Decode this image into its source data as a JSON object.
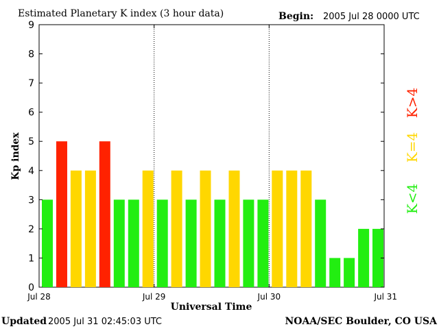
{
  "header": {
    "title": "Estimated Planetary K index (3 hour data)",
    "begin_label": "Begin:",
    "begin_value": "2005 Jul 28 0000 UTC"
  },
  "footer": {
    "updated_label": "Updated",
    "updated_value": "2005 Jul 31 02:45:03 UTC",
    "source": "NOAA/SEC Boulder, CO USA"
  },
  "legend": {
    "items": [
      {
        "label": "K>4",
        "color": "#ff2200"
      },
      {
        "label": "K=4",
        "color": "#ffd700"
      },
      {
        "label": "K<4",
        "color": "#22ee11"
      }
    ]
  },
  "chart_data": {
    "type": "bar",
    "xlabel": "Universal Time",
    "ylabel": "Kp index",
    "ylim": [
      0,
      9
    ],
    "y_ticks": [
      "0",
      "1",
      "2",
      "3",
      "4",
      "5",
      "6",
      "7",
      "8",
      "9"
    ],
    "x_ticks": [
      "Jul 28",
      "Jul 29",
      "Jul 30",
      "Jul 31"
    ],
    "day_dividers": [
      "Jul 29",
      "Jul 30"
    ],
    "grid": false,
    "legend_position": "right",
    "values": [
      3,
      5,
      4,
      4,
      5,
      3,
      3,
      4,
      3,
      4,
      3,
      4,
      3,
      4,
      3,
      3,
      4,
      4,
      4,
      3,
      1,
      1,
      2,
      2
    ],
    "colors": {
      "low": "#22ee11",
      "storm_threshold": "#ffd700",
      "high": "#ff2200"
    }
  }
}
